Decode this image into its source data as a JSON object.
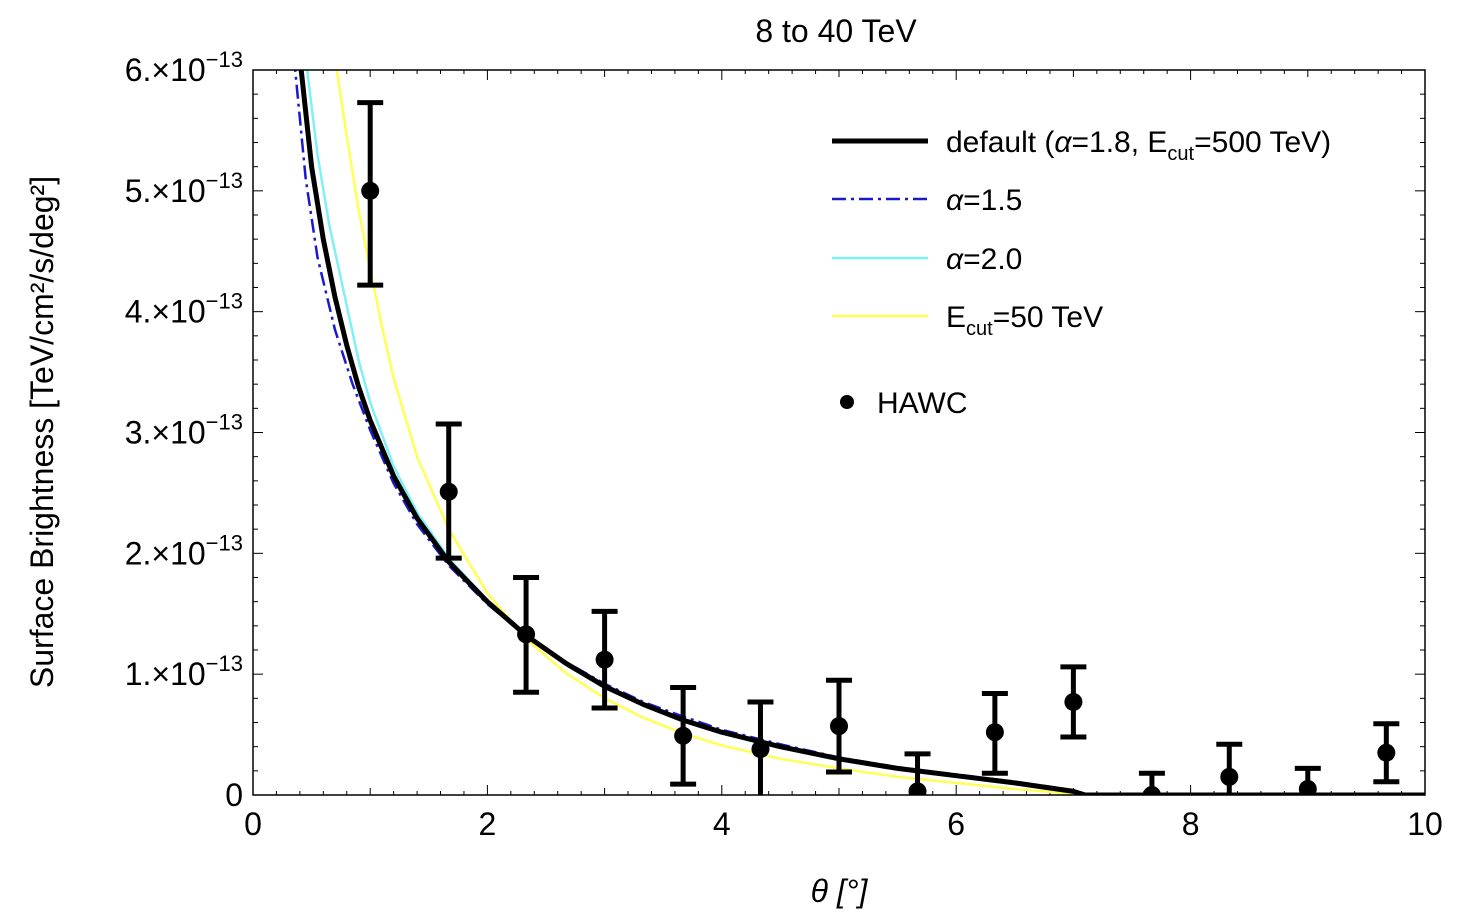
{
  "chart_data": {
    "type": "scatter",
    "title": "8 to 40 TeV",
    "xlabel": "θ [°]",
    "ylabel": "Surface Brightness [TeV/cm²/s/deg²]",
    "xlim": [
      0,
      10
    ],
    "ylim": [
      0,
      6e-13
    ],
    "x_ticks": [
      0,
      2,
      4,
      6,
      8,
      10
    ],
    "x_tick_labels": [
      "0",
      "2",
      "4",
      "6",
      "8",
      "10"
    ],
    "y_ticks": [
      0,
      1e-13,
      2e-13,
      3e-13,
      4e-13,
      5e-13,
      6e-13
    ],
    "y_tick_labels": [
      {
        "mant": "0",
        "exp": ""
      },
      {
        "mant": "1.×10",
        "exp": "−13"
      },
      {
        "mant": "2.×10",
        "exp": "−13"
      },
      {
        "mant": "3.×10",
        "exp": "−13"
      },
      {
        "mant": "4.×10",
        "exp": "−13"
      },
      {
        "mant": "5.×10",
        "exp": "−13"
      },
      {
        "mant": "6.×10",
        "exp": "−13"
      }
    ],
    "grid": false,
    "legend_position": "top-right",
    "data_series": {
      "name": "HAWC",
      "color": "#000000",
      "points": [
        {
          "x": 1.0,
          "y": 5e-13,
          "lo": 4.22e-13,
          "hi": 5.73e-13
        },
        {
          "x": 1.67,
          "y": 2.51e-13,
          "lo": 1.96e-13,
          "hi": 3.07e-13
        },
        {
          "x": 2.33,
          "y": 1.33e-13,
          "lo": 8.5e-14,
          "hi": 1.8e-13
        },
        {
          "x": 3.0,
          "y": 1.12e-13,
          "lo": 7.2e-14,
          "hi": 1.52e-13
        },
        {
          "x": 3.67,
          "y": 4.9e-14,
          "lo": 9e-15,
          "hi": 8.9e-14
        },
        {
          "x": 4.33,
          "y": 3.8e-14,
          "lo": -2e-15,
          "hi": 7.7e-14
        },
        {
          "x": 5.0,
          "y": 5.7e-14,
          "lo": 1.9e-14,
          "hi": 9.5e-14
        },
        {
          "x": 5.67,
          "y": 3e-15,
          "lo": -2.8e-14,
          "hi": 3.4e-14
        },
        {
          "x": 6.33,
          "y": 5.2e-14,
          "lo": 1.8e-14,
          "hi": 8.4e-14
        },
        {
          "x": 7.0,
          "y": 7.7e-14,
          "lo": 4.8e-14,
          "hi": 1.06e-13
        },
        {
          "x": 7.67,
          "y": 0.0,
          "lo": -2.2e-14,
          "hi": 1.8e-14
        },
        {
          "x": 8.33,
          "y": 1.5e-14,
          "lo": -1.2e-14,
          "hi": 4.2e-14
        },
        {
          "x": 9.0,
          "y": 5e-15,
          "lo": -1.2e-14,
          "hi": 2.2e-14
        },
        {
          "x": 9.67,
          "y": 3.5e-14,
          "lo": 1.1e-14,
          "hi": 5.9e-14
        }
      ]
    },
    "model_series": [
      {
        "name": "default (α=1.8, E_cut=500 TeV)",
        "legend_label": {
          "prefix": "default (",
          "sym": "α",
          "mid": "=1.8, E",
          "sub": "cut",
          "suffix": "=500 TeV)"
        },
        "color": "#000000",
        "style": "thick-solid",
        "points": [
          [
            0.4,
            6.1e-13
          ],
          [
            0.5,
            5.2e-13
          ],
          [
            0.6,
            4.6e-13
          ],
          [
            0.7,
            4.12e-13
          ],
          [
            0.8,
            3.72e-13
          ],
          [
            0.9,
            3.38e-13
          ],
          [
            1.0,
            3.1e-13
          ],
          [
            1.2,
            2.64e-13
          ],
          [
            1.4,
            2.29e-13
          ],
          [
            1.67,
            1.93e-13
          ],
          [
            2.0,
            1.6e-13
          ],
          [
            2.33,
            1.32e-13
          ],
          [
            2.67,
            1.09e-13
          ],
          [
            3.0,
            9e-14
          ],
          [
            3.33,
            7.5e-14
          ],
          [
            3.67,
            6.2e-14
          ],
          [
            4.0,
            5.2e-14
          ],
          [
            4.5,
            4e-14
          ],
          [
            5.0,
            3e-14
          ],
          [
            5.5,
            2.2e-14
          ],
          [
            6.0,
            1.6e-14
          ],
          [
            6.5,
            1e-14
          ],
          [
            7.0,
            3e-15
          ],
          [
            7.1,
            0.0
          ],
          [
            10.0,
            0.0
          ]
        ]
      },
      {
        "name": "α=1.5",
        "legend_label": {
          "prefix": "",
          "sym": "α",
          "mid": "=1.5",
          "sub": "",
          "suffix": ""
        },
        "color": "#1a1acc",
        "style": "dash-dot",
        "points": [
          [
            0.35,
            6.1e-13
          ],
          [
            0.45,
            5.1e-13
          ],
          [
            0.55,
            4.45e-13
          ],
          [
            0.7,
            3.85e-13
          ],
          [
            0.85,
            3.4e-13
          ],
          [
            1.0,
            3.02e-13
          ],
          [
            1.2,
            2.58e-13
          ],
          [
            1.4,
            2.24e-13
          ],
          [
            1.67,
            1.9e-13
          ],
          [
            2.0,
            1.58e-13
          ],
          [
            2.33,
            1.32e-13
          ],
          [
            2.67,
            1.1e-13
          ],
          [
            3.0,
            9.2e-14
          ],
          [
            3.33,
            7.7e-14
          ],
          [
            3.67,
            6.5e-14
          ],
          [
            4.0,
            5.4e-14
          ],
          [
            4.5,
            4.2e-14
          ],
          [
            5.0,
            3.1e-14
          ],
          [
            5.5,
            2.3e-14
          ],
          [
            6.0,
            1.7e-14
          ],
          [
            6.5,
            1.1e-14
          ],
          [
            7.0,
            4e-15
          ],
          [
            7.1,
            0.0
          ],
          [
            10.0,
            0.0
          ]
        ]
      },
      {
        "name": "α=2.0",
        "legend_label": {
          "prefix": "",
          "sym": "α",
          "mid": "=2.0",
          "sub": "",
          "suffix": ""
        },
        "color": "#7ff0f5",
        "style": "solid",
        "points": [
          [
            0.45,
            6.1e-13
          ],
          [
            0.55,
            5.3e-13
          ],
          [
            0.65,
            4.72e-13
          ],
          [
            0.8,
            4.05e-13
          ],
          [
            0.9,
            3.6e-13
          ],
          [
            1.0,
            3.25e-13
          ],
          [
            1.2,
            2.72e-13
          ],
          [
            1.4,
            2.34e-13
          ],
          [
            1.67,
            1.96e-13
          ],
          [
            2.0,
            1.61e-13
          ],
          [
            2.33,
            1.32e-13
          ],
          [
            2.67,
            1.08e-13
          ],
          [
            3.0,
            8.9e-14
          ],
          [
            3.33,
            7.4e-14
          ],
          [
            3.67,
            6.1e-14
          ],
          [
            4.0,
            5.1e-14
          ],
          [
            4.5,
            3.9e-14
          ],
          [
            5.0,
            2.9e-14
          ],
          [
            5.5,
            2.1e-14
          ],
          [
            6.0,
            1.5e-14
          ],
          [
            6.5,
            9e-15
          ],
          [
            7.0,
            3e-15
          ],
          [
            7.1,
            0.0
          ],
          [
            10.0,
            0.0
          ]
        ]
      },
      {
        "name": "E_cut=50 TeV",
        "legend_label": {
          "prefix": "E",
          "sym": "",
          "mid": "",
          "sub": "cut",
          "suffix": "=50 TeV"
        },
        "color": "#ffff55",
        "style": "solid",
        "points": [
          [
            0.7,
            6.1e-13
          ],
          [
            0.8,
            5.45e-13
          ],
          [
            0.9,
            4.85e-13
          ],
          [
            1.0,
            4.35e-13
          ],
          [
            1.1,
            3.88e-13
          ],
          [
            1.2,
            3.45e-13
          ],
          [
            1.4,
            2.8e-13
          ],
          [
            1.67,
            2.2e-13
          ],
          [
            2.0,
            1.67e-13
          ],
          [
            2.33,
            1.29e-13
          ],
          [
            2.67,
            1.01e-13
          ],
          [
            3.0,
            8e-14
          ],
          [
            3.33,
            6.4e-14
          ],
          [
            3.67,
            5.1e-14
          ],
          [
            4.0,
            4.1e-14
          ],
          [
            4.5,
            3e-14
          ],
          [
            5.0,
            2.2e-14
          ],
          [
            5.5,
            1.5e-14
          ],
          [
            6.0,
            1e-14
          ],
          [
            6.5,
            5e-15
          ],
          [
            7.0,
            1e-15
          ],
          [
            7.1,
            0.0
          ],
          [
            10.0,
            0.0
          ]
        ]
      }
    ]
  }
}
